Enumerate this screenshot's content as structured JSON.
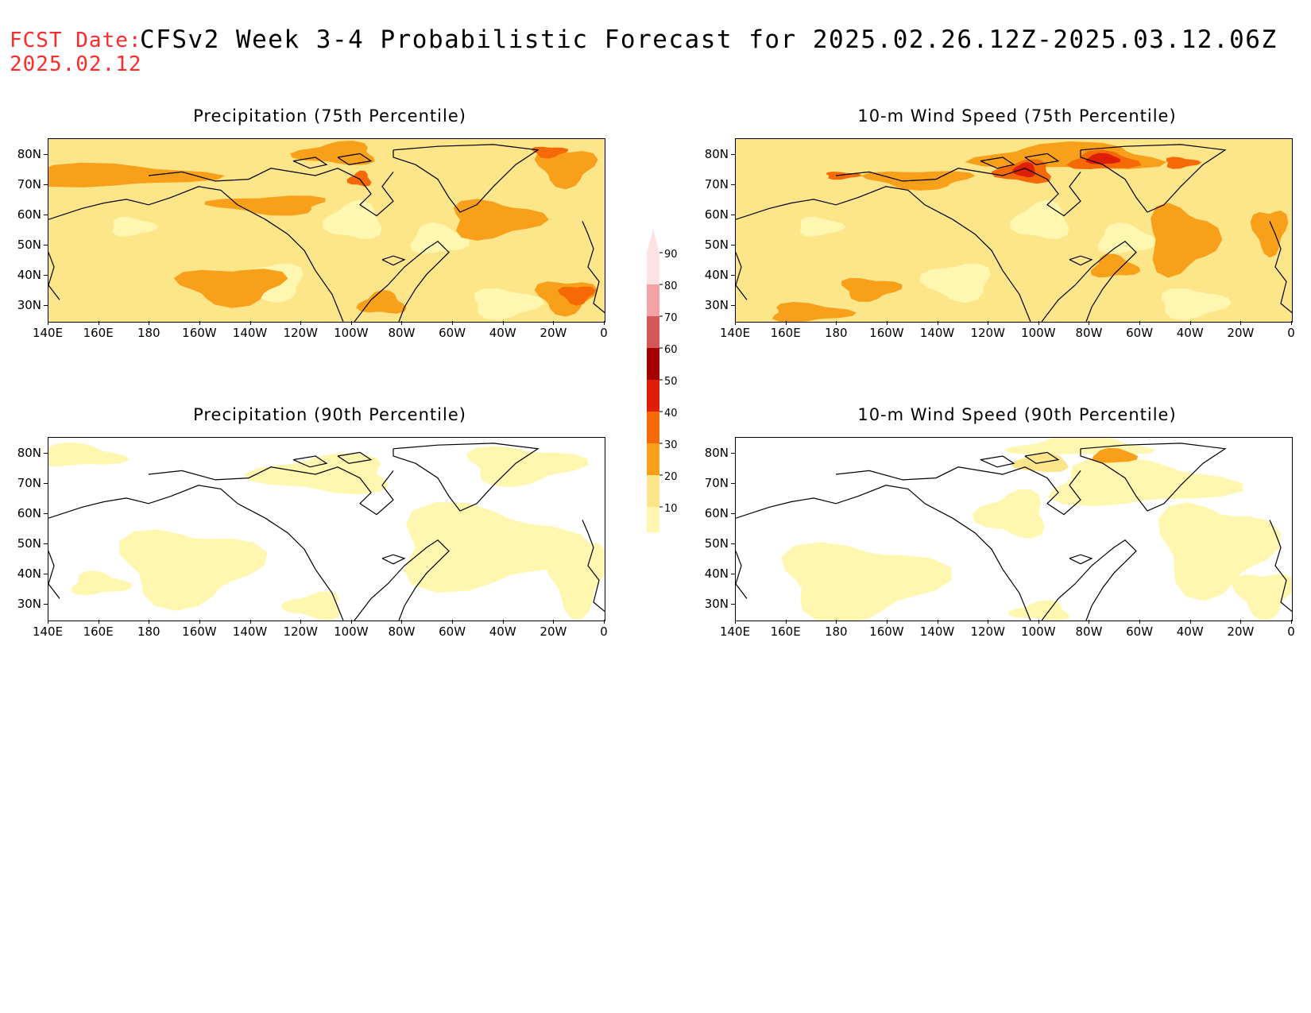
{
  "header": {
    "fcst_label": "FCST Date:",
    "fcst_date": "2025.02.12",
    "title": "CFSv2 Week 3-4 Probabilistic Forecast for 2025.02.26.12Z-2025.03.12.06Z"
  },
  "axes": {
    "lat_labels": [
      "80N",
      "70N",
      "60N",
      "50N",
      "40N",
      "30N"
    ],
    "lon_labels": [
      "140E",
      "160E",
      "180",
      "160W",
      "140W",
      "120W",
      "100W",
      "80W",
      "60W",
      "40W",
      "20W",
      "0"
    ]
  },
  "panels": [
    {
      "title": "Precipitation (75th Percentile)",
      "level": "high",
      "variable": "precip"
    },
    {
      "title": "10-m Wind Speed (75th Percentile)",
      "level": "high",
      "variable": "wind"
    },
    {
      "title": "Precipitation (90th Percentile)",
      "level": "low",
      "variable": "precip"
    },
    {
      "title": "10-m Wind Speed (90th Percentile)",
      "level": "low",
      "variable": "wind"
    }
  ],
  "colorbar": {
    "labels": [
      "90",
      "80",
      "70",
      "60",
      "50",
      "40",
      "30",
      "20",
      "10"
    ],
    "colors": {
      "10": "#fff7b0",
      "20": "#fde58a",
      "30": "#f9a01b",
      "40": "#f56a06",
      "50": "#de1f05",
      "60": "#a50000",
      "70": "#d45858",
      "80": "#f3a3a3",
      "90": "#fde2e2"
    }
  },
  "colors": {
    "fcst_red": "#ff2a2a",
    "light_yellow": "#fff7b0",
    "yellow": "#fde58a",
    "orange": "#f9a01b",
    "dark_orange": "#f56a06",
    "red": "#de1f05",
    "dark_red": "#a50000"
  }
}
